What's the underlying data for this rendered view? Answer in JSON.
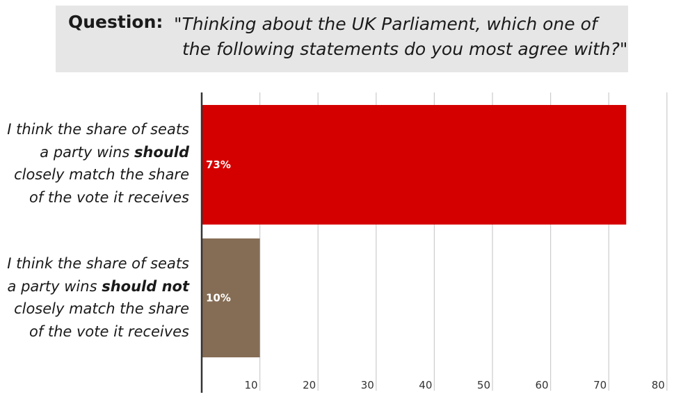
{
  "question": {
    "label": "Question:",
    "text_line1": "\"Thinking about the UK Parliament, which one of",
    "text_line2": "the following statements do you most agree with?\""
  },
  "chart_data": {
    "type": "bar",
    "orientation": "horizontal",
    "categories": [
      "I think the share of seats a party wins should closely match the share of the vote it receives",
      "I think the share of seats a party wins should not closely match the share of the vote it receives"
    ],
    "category_label_lines": [
      [
        {
          "pre": "I think the share of seats",
          "bold": "",
          "post": ""
        },
        {
          "pre": "a party wins ",
          "bold": "should",
          "post": ""
        },
        {
          "pre": "closely match the share",
          "bold": "",
          "post": ""
        },
        {
          "pre": "of the vote it receives",
          "bold": "",
          "post": ""
        }
      ],
      [
        {
          "pre": "I think the share of seats",
          "bold": "",
          "post": ""
        },
        {
          "pre": "a party wins ",
          "bold": "should not",
          "post": ""
        },
        {
          "pre": "closely match the share",
          "bold": "",
          "post": ""
        },
        {
          "pre": "of the vote it receives",
          "bold": "",
          "post": ""
        }
      ]
    ],
    "values": [
      73,
      10
    ],
    "data_labels": [
      "73%",
      "10%"
    ],
    "colors": [
      "#d40000",
      "#856d55"
    ],
    "xlim": [
      0,
      80
    ],
    "xticks": [
      10,
      20,
      30,
      40,
      50,
      60,
      70,
      80
    ],
    "grid": true,
    "title": "",
    "xlabel": "",
    "ylabel": ""
  }
}
